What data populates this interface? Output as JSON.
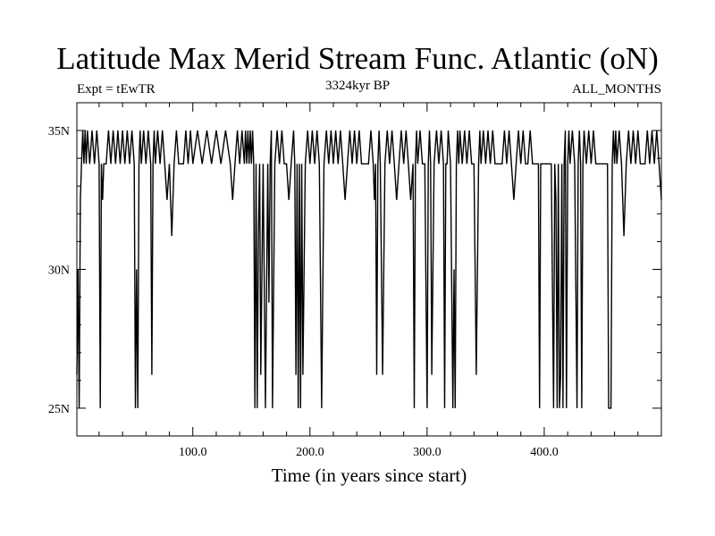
{
  "chart_data": {
    "type": "line",
    "title": "Latitude Max Merid Stream Func. Atlantic (oN)",
    "left_subtitle": "Expt = tEwTR",
    "center_subtitle": "3324kyr BP",
    "right_subtitle": "ALL_MONTHS",
    "xlabel": "Time (in years since start)",
    "ylabel": "",
    "xlim": [
      1,
      500
    ],
    "ylim": [
      24,
      36
    ],
    "x_ticks": [
      {
        "value": 100,
        "label": "100.0"
      },
      {
        "value": 200,
        "label": "200.0"
      },
      {
        "value": 300,
        "label": "300.0"
      },
      {
        "value": 400,
        "label": "400.0"
      }
    ],
    "y_ticks": [
      {
        "value": 25,
        "label": "25N"
      },
      {
        "value": 30,
        "label": "30N"
      },
      {
        "value": 35,
        "label": "35N"
      }
    ],
    "grid": false,
    "series": [
      {
        "color": "#000000",
        "x": [
          1,
          2,
          3,
          4,
          5,
          6,
          7,
          8,
          9,
          10,
          12,
          14,
          16,
          18,
          20,
          21,
          22,
          23,
          24,
          26,
          28,
          30,
          32,
          34,
          36,
          38,
          40,
          42,
          44,
          46,
          48,
          50,
          51,
          52,
          53,
          54,
          55,
          56,
          58,
          60,
          62,
          64,
          65,
          66,
          67,
          68,
          70,
          72,
          74,
          76,
          78,
          80,
          82,
          84,
          86,
          88,
          90,
          92,
          94,
          96,
          98,
          100,
          104,
          108,
          112,
          116,
          120,
          124,
          128,
          132,
          134,
          136,
          138,
          140,
          142,
          144,
          145,
          146,
          147,
          148,
          149,
          150,
          151,
          152,
          153,
          154,
          155,
          156,
          157,
          158,
          160,
          162,
          164,
          165,
          166,
          167,
          168,
          170,
          172,
          174,
          176,
          178,
          180,
          182,
          184,
          186,
          187,
          188,
          189,
          190,
          191,
          192,
          193,
          194,
          196,
          198,
          200,
          202,
          204,
          206,
          208,
          210,
          212,
          214,
          216,
          218,
          220,
          222,
          224,
          226,
          228,
          230,
          232,
          234,
          236,
          238,
          240,
          242,
          244,
          246,
          248,
          250,
          252,
          254,
          255,
          256,
          257,
          258,
          259,
          260,
          262,
          264,
          266,
          268,
          270,
          272,
          274,
          276,
          278,
          280,
          282,
          284,
          286,
          288,
          289,
          290,
          291,
          292,
          294,
          296,
          298,
          300,
          301,
          302,
          303,
          304,
          306,
          308,
          310,
          312,
          314,
          315,
          316,
          317,
          318,
          320,
          322,
          323,
          324,
          325,
          326,
          327,
          328,
          330,
          332,
          334,
          336,
          338,
          340,
          342,
          344,
          345,
          346,
          348,
          350,
          352,
          354,
          356,
          358,
          360,
          362,
          364,
          366,
          368,
          370,
          372,
          374,
          376,
          378,
          380,
          382,
          384,
          386,
          388,
          390,
          392,
          394,
          395,
          396,
          397,
          398,
          400,
          402,
          404,
          406,
          408,
          409,
          410,
          411,
          412,
          413,
          414,
          415,
          416,
          417,
          418,
          419,
          420,
          421,
          422,
          424,
          426,
          428,
          429,
          430,
          431,
          432,
          433,
          434,
          436,
          438,
          440,
          442,
          444,
          446,
          448,
          450,
          452,
          454,
          455,
          456,
          457,
          458,
          459,
          460,
          461,
          462,
          464,
          466,
          468,
          470,
          472,
          474,
          476,
          478,
          480,
          482,
          484,
          486,
          488,
          490,
          492,
          494,
          496,
          498,
          500
        ],
        "y": [
          26.2,
          30.0,
          25.0,
          32.5,
          33.8,
          35.0,
          33.8,
          35.0,
          33.8,
          35.0,
          33.8,
          35.0,
          33.8,
          35.0,
          33.8,
          25.0,
          33.8,
          32.5,
          33.8,
          33.8,
          35.0,
          33.8,
          35.0,
          33.8,
          35.0,
          33.8,
          35.0,
          33.8,
          35.0,
          33.8,
          35.0,
          33.8,
          25.0,
          30.0,
          25.0,
          33.8,
          35.0,
          33.8,
          35.0,
          33.8,
          35.0,
          33.8,
          26.2,
          33.8,
          35.0,
          33.8,
          35.0,
          33.8,
          35.0,
          33.8,
          32.5,
          33.8,
          31.2,
          33.8,
          35.0,
          33.8,
          33.8,
          33.8,
          35.0,
          33.8,
          35.0,
          33.8,
          35.0,
          33.8,
          35.0,
          33.8,
          35.0,
          33.8,
          35.0,
          33.8,
          32.5,
          33.8,
          35.0,
          33.8,
          35.0,
          33.8,
          35.0,
          33.8,
          35.0,
          33.8,
          35.0,
          33.8,
          35.0,
          33.8,
          25.0,
          33.8,
          25.0,
          31.2,
          33.8,
          26.2,
          33.8,
          25.0,
          33.8,
          28.8,
          33.8,
          35.0,
          25.0,
          33.8,
          35.0,
          33.8,
          35.0,
          33.8,
          33.8,
          32.5,
          33.8,
          35.0,
          33.8,
          26.2,
          33.8,
          25.0,
          33.8,
          25.0,
          33.8,
          26.2,
          33.8,
          35.0,
          33.8,
          35.0,
          33.8,
          35.0,
          33.8,
          25.0,
          33.8,
          35.0,
          33.8,
          35.0,
          33.8,
          35.0,
          33.8,
          35.0,
          33.8,
          32.5,
          33.8,
          35.0,
          33.8,
          35.0,
          33.8,
          35.0,
          33.8,
          33.8,
          33.8,
          33.8,
          35.0,
          33.8,
          32.5,
          33.8,
          26.2,
          33.8,
          35.0,
          33.8,
          26.2,
          33.8,
          35.0,
          33.8,
          35.0,
          33.8,
          32.5,
          33.8,
          35.0,
          33.8,
          35.0,
          33.8,
          32.5,
          33.8,
          25.0,
          33.8,
          35.0,
          33.8,
          35.0,
          33.8,
          33.8,
          25.0,
          33.8,
          35.0,
          33.8,
          26.2,
          33.8,
          35.0,
          33.8,
          35.0,
          33.8,
          25.0,
          33.8,
          33.8,
          35.0,
          33.8,
          25.0,
          30.0,
          25.0,
          33.8,
          35.0,
          33.8,
          35.0,
          33.8,
          35.0,
          33.8,
          35.0,
          33.8,
          33.8,
          26.2,
          33.8,
          35.0,
          33.8,
          35.0,
          33.8,
          35.0,
          33.8,
          35.0,
          33.8,
          33.8,
          33.8,
          33.8,
          35.0,
          33.8,
          35.0,
          33.8,
          32.5,
          33.8,
          35.0,
          33.8,
          35.0,
          33.8,
          33.8,
          35.0,
          33.8,
          33.8,
          33.8,
          33.8,
          25.0,
          33.8,
          33.8,
          33.8,
          33.8,
          33.8,
          33.8,
          25.0,
          33.8,
          32.5,
          25.0,
          33.8,
          25.0,
          26.2,
          33.8,
          25.0,
          33.8,
          35.0,
          25.0,
          33.8,
          35.0,
          33.8,
          35.0,
          33.8,
          25.0,
          33.8,
          35.0,
          33.8,
          25.0,
          33.8,
          35.0,
          33.8,
          35.0,
          33.8,
          35.0,
          33.8,
          33.8,
          33.8,
          33.8,
          33.8,
          33.8,
          25.0,
          25.0,
          25.0,
          33.8,
          35.0,
          33.8,
          35.0,
          33.8,
          35.0,
          33.8,
          31.2,
          33.8,
          35.0,
          33.8,
          35.0,
          33.8,
          35.0,
          33.8,
          33.8,
          33.8,
          35.0,
          33.8,
          35.0,
          33.8,
          35.0,
          33.8,
          32.5
        ]
      }
    ]
  }
}
